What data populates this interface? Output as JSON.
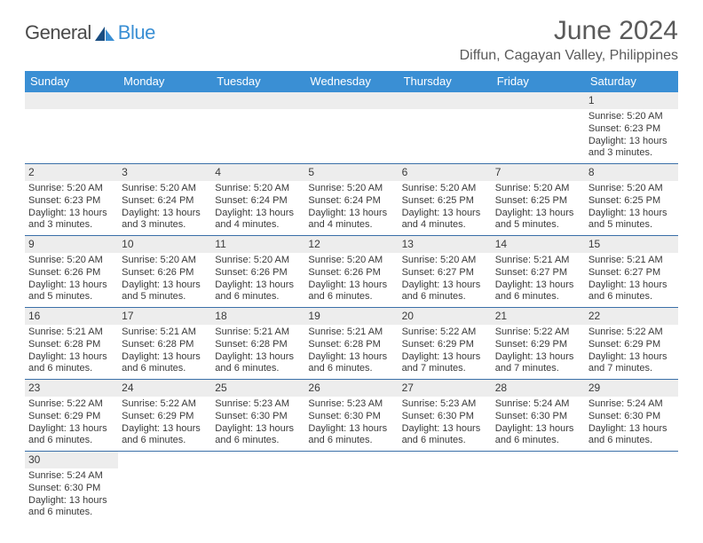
{
  "logo": {
    "part1": "General",
    "part2": "Blue"
  },
  "title": "June 2024",
  "location": "Diffun, Cagayan Valley, Philippines",
  "colors": {
    "header_bg": "#3a8fd4",
    "row_divider": "#3a6fa8",
    "num_bg": "#ededed",
    "text": "#3a3a3a",
    "title_text": "#5a5a5a"
  },
  "day_names": [
    "Sunday",
    "Monday",
    "Tuesday",
    "Wednesday",
    "Thursday",
    "Friday",
    "Saturday"
  ],
  "weeks": [
    [
      null,
      null,
      null,
      null,
      null,
      null,
      {
        "n": "1",
        "sr": "5:20 AM",
        "ss": "6:23 PM",
        "dl": "13 hours and 3 minutes."
      }
    ],
    [
      {
        "n": "2",
        "sr": "5:20 AM",
        "ss": "6:23 PM",
        "dl": "13 hours and 3 minutes."
      },
      {
        "n": "3",
        "sr": "5:20 AM",
        "ss": "6:24 PM",
        "dl": "13 hours and 3 minutes."
      },
      {
        "n": "4",
        "sr": "5:20 AM",
        "ss": "6:24 PM",
        "dl": "13 hours and 4 minutes."
      },
      {
        "n": "5",
        "sr": "5:20 AM",
        "ss": "6:24 PM",
        "dl": "13 hours and 4 minutes."
      },
      {
        "n": "6",
        "sr": "5:20 AM",
        "ss": "6:25 PM",
        "dl": "13 hours and 4 minutes."
      },
      {
        "n": "7",
        "sr": "5:20 AM",
        "ss": "6:25 PM",
        "dl": "13 hours and 5 minutes."
      },
      {
        "n": "8",
        "sr": "5:20 AM",
        "ss": "6:25 PM",
        "dl": "13 hours and 5 minutes."
      }
    ],
    [
      {
        "n": "9",
        "sr": "5:20 AM",
        "ss": "6:26 PM",
        "dl": "13 hours and 5 minutes."
      },
      {
        "n": "10",
        "sr": "5:20 AM",
        "ss": "6:26 PM",
        "dl": "13 hours and 5 minutes."
      },
      {
        "n": "11",
        "sr": "5:20 AM",
        "ss": "6:26 PM",
        "dl": "13 hours and 6 minutes."
      },
      {
        "n": "12",
        "sr": "5:20 AM",
        "ss": "6:26 PM",
        "dl": "13 hours and 6 minutes."
      },
      {
        "n": "13",
        "sr": "5:20 AM",
        "ss": "6:27 PM",
        "dl": "13 hours and 6 minutes."
      },
      {
        "n": "14",
        "sr": "5:21 AM",
        "ss": "6:27 PM",
        "dl": "13 hours and 6 minutes."
      },
      {
        "n": "15",
        "sr": "5:21 AM",
        "ss": "6:27 PM",
        "dl": "13 hours and 6 minutes."
      }
    ],
    [
      {
        "n": "16",
        "sr": "5:21 AM",
        "ss": "6:28 PM",
        "dl": "13 hours and 6 minutes."
      },
      {
        "n": "17",
        "sr": "5:21 AM",
        "ss": "6:28 PM",
        "dl": "13 hours and 6 minutes."
      },
      {
        "n": "18",
        "sr": "5:21 AM",
        "ss": "6:28 PM",
        "dl": "13 hours and 6 minutes."
      },
      {
        "n": "19",
        "sr": "5:21 AM",
        "ss": "6:28 PM",
        "dl": "13 hours and 6 minutes."
      },
      {
        "n": "20",
        "sr": "5:22 AM",
        "ss": "6:29 PM",
        "dl": "13 hours and 7 minutes."
      },
      {
        "n": "21",
        "sr": "5:22 AM",
        "ss": "6:29 PM",
        "dl": "13 hours and 7 minutes."
      },
      {
        "n": "22",
        "sr": "5:22 AM",
        "ss": "6:29 PM",
        "dl": "13 hours and 7 minutes."
      }
    ],
    [
      {
        "n": "23",
        "sr": "5:22 AM",
        "ss": "6:29 PM",
        "dl": "13 hours and 6 minutes."
      },
      {
        "n": "24",
        "sr": "5:22 AM",
        "ss": "6:29 PM",
        "dl": "13 hours and 6 minutes."
      },
      {
        "n": "25",
        "sr": "5:23 AM",
        "ss": "6:30 PM",
        "dl": "13 hours and 6 minutes."
      },
      {
        "n": "26",
        "sr": "5:23 AM",
        "ss": "6:30 PM",
        "dl": "13 hours and 6 minutes."
      },
      {
        "n": "27",
        "sr": "5:23 AM",
        "ss": "6:30 PM",
        "dl": "13 hours and 6 minutes."
      },
      {
        "n": "28",
        "sr": "5:24 AM",
        "ss": "6:30 PM",
        "dl": "13 hours and 6 minutes."
      },
      {
        "n": "29",
        "sr": "5:24 AM",
        "ss": "6:30 PM",
        "dl": "13 hours and 6 minutes."
      }
    ],
    [
      {
        "n": "30",
        "sr": "5:24 AM",
        "ss": "6:30 PM",
        "dl": "13 hours and 6 minutes."
      },
      null,
      null,
      null,
      null,
      null,
      null
    ]
  ],
  "labels": {
    "sunrise": "Sunrise: ",
    "sunset": "Sunset: ",
    "daylight": "Daylight: "
  }
}
